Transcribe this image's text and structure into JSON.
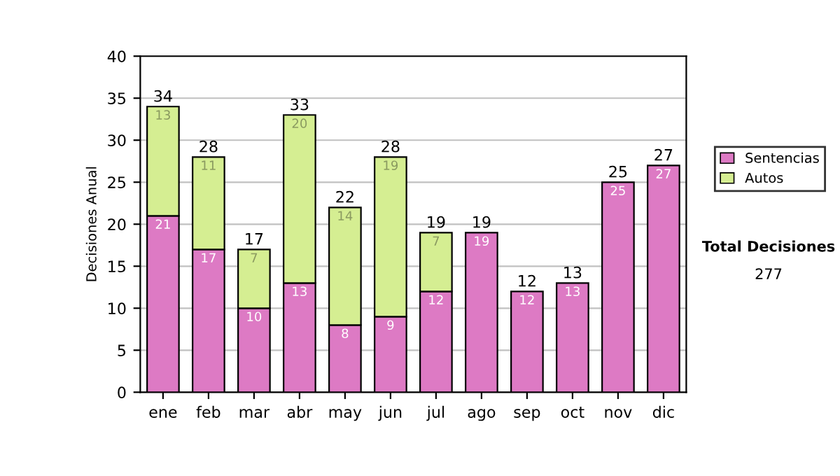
{
  "chart_data": {
    "type": "bar",
    "stacked": true,
    "ylabel": "Decisiones Anual",
    "categories": [
      "ene",
      "feb",
      "mar",
      "abr",
      "may",
      "jun",
      "jul",
      "ago",
      "sep",
      "oct",
      "nov",
      "dic"
    ],
    "series": [
      {
        "name": "Sentencias",
        "color": "#dd7ac4",
        "values": [
          21,
          17,
          10,
          13,
          8,
          9,
          12,
          19,
          12,
          13,
          25,
          27
        ]
      },
      {
        "name": "Autos",
        "color": "#d5ee92",
        "values": [
          13,
          11,
          7,
          20,
          14,
          19,
          7,
          null,
          null,
          null,
          null,
          null
        ]
      }
    ],
    "data_labels": true,
    "totals": [
      "34",
      "28",
      "17",
      "33",
      "22",
      "28",
      "19",
      "19",
      "12",
      "13",
      "25",
      "27"
    ],
    "ylim": [
      0,
      40
    ],
    "yticks": [
      0,
      5,
      10,
      15,
      20,
      25,
      30,
      35,
      40
    ],
    "grid": "y",
    "legend": "right",
    "annotations": [
      "Total Decisiones",
      "277"
    ]
  }
}
